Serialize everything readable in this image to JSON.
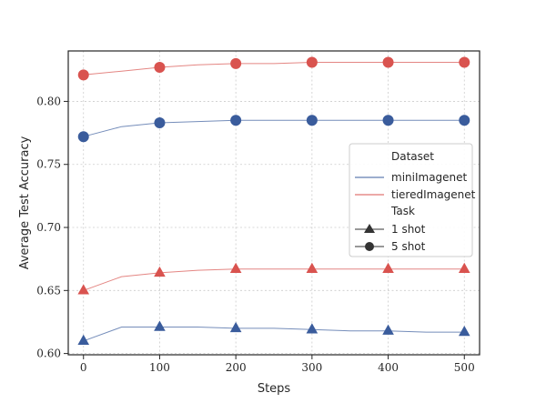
{
  "chart_data": {
    "type": "line",
    "xlabel": "Steps",
    "ylabel": "Average Test Accuracy",
    "xlim": [
      -20,
      520
    ],
    "ylim": [
      0.599,
      0.84
    ],
    "xticks": [
      0,
      100,
      200,
      300,
      400,
      500
    ],
    "yticks": [
      0.6,
      0.65,
      0.7,
      0.75,
      0.8
    ],
    "xtick_labels": [
      "0",
      "100",
      "200",
      "300",
      "400",
      "500"
    ],
    "ytick_labels": [
      "0.60",
      "0.65",
      "0.70",
      "0.75",
      "0.80"
    ],
    "grid": true,
    "legend": {
      "placement": "right",
      "group_titles": [
        "Dataset",
        "Task"
      ],
      "dataset_entries": [
        {
          "label": "miniImagenet",
          "color": "#3a5c9c"
        },
        {
          "label": "tieredImagenet",
          "color": "#d9534f"
        }
      ],
      "task_entries": [
        {
          "label": "1 shot",
          "marker": "triangle"
        },
        {
          "label": "5 shot",
          "marker": "circle"
        }
      ]
    },
    "series": [
      {
        "dataset": "tieredImagenet",
        "task": "5 shot",
        "color": "#d9534f",
        "marker": "circle",
        "line_x": [
          0,
          50,
          100,
          150,
          200,
          250,
          300,
          350,
          400,
          450,
          500
        ],
        "line_y": [
          0.821,
          0.824,
          0.827,
          0.829,
          0.83,
          0.83,
          0.831,
          0.831,
          0.831,
          0.831,
          0.831
        ],
        "marker_x": [
          0,
          100,
          200,
          300,
          400,
          500
        ],
        "marker_y": [
          0.821,
          0.827,
          0.83,
          0.831,
          0.831,
          0.831
        ]
      },
      {
        "dataset": "miniImagenet",
        "task": "5 shot",
        "color": "#3a5c9c",
        "marker": "circle",
        "line_x": [
          0,
          50,
          100,
          150,
          200,
          250,
          300,
          350,
          400,
          450,
          500
        ],
        "line_y": [
          0.772,
          0.78,
          0.783,
          0.784,
          0.785,
          0.785,
          0.785,
          0.785,
          0.785,
          0.785,
          0.785
        ],
        "marker_x": [
          0,
          100,
          200,
          300,
          400,
          500
        ],
        "marker_y": [
          0.772,
          0.783,
          0.785,
          0.785,
          0.785,
          0.785
        ]
      },
      {
        "dataset": "tieredImagenet",
        "task": "1 shot",
        "color": "#d9534f",
        "marker": "triangle",
        "line_x": [
          0,
          50,
          100,
          150,
          200,
          250,
          300,
          350,
          400,
          450,
          500
        ],
        "line_y": [
          0.65,
          0.661,
          0.664,
          0.666,
          0.667,
          0.667,
          0.667,
          0.667,
          0.667,
          0.667,
          0.667
        ],
        "marker_x": [
          0,
          100,
          200,
          300,
          400,
          500
        ],
        "marker_y": [
          0.65,
          0.664,
          0.667,
          0.667,
          0.667,
          0.667
        ]
      },
      {
        "dataset": "miniImagenet",
        "task": "1 shot",
        "color": "#3a5c9c",
        "marker": "triangle",
        "line_x": [
          0,
          50,
          100,
          150,
          200,
          250,
          300,
          350,
          400,
          450,
          500
        ],
        "line_y": [
          0.61,
          0.621,
          0.621,
          0.621,
          0.62,
          0.62,
          0.619,
          0.618,
          0.618,
          0.617,
          0.617
        ],
        "marker_x": [
          0,
          100,
          200,
          300,
          400,
          500
        ],
        "marker_y": [
          0.61,
          0.621,
          0.62,
          0.619,
          0.618,
          0.617
        ]
      }
    ]
  }
}
